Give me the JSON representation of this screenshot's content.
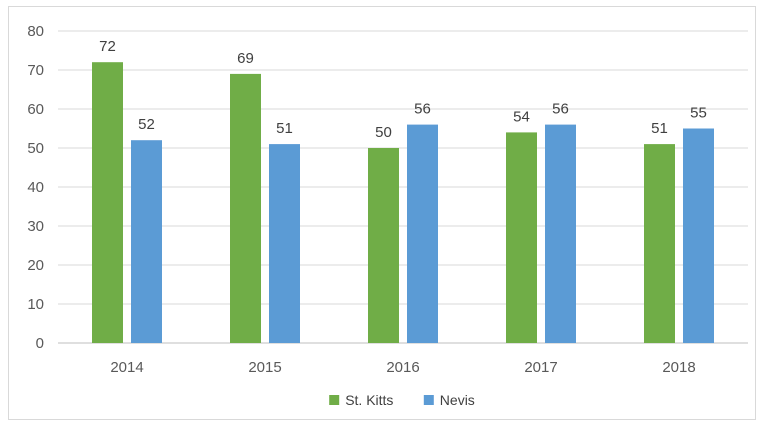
{
  "chart_data": {
    "type": "bar",
    "categories": [
      "2014",
      "2015",
      "2016",
      "2017",
      "2018"
    ],
    "series": [
      {
        "name": "St. Kitts",
        "values": [
          72,
          69,
          50,
          54,
          51
        ],
        "color": "#70ad47"
      },
      {
        "name": "Nevis",
        "values": [
          52,
          51,
          56,
          56,
          55
        ],
        "color": "#5b9bd5"
      }
    ],
    "ylim": [
      0,
      80
    ],
    "yticks": [
      0,
      10,
      20,
      30,
      40,
      50,
      60,
      70,
      80
    ],
    "grid": true,
    "legend_position": "bottom",
    "title": "",
    "xlabel": "",
    "ylabel": ""
  }
}
